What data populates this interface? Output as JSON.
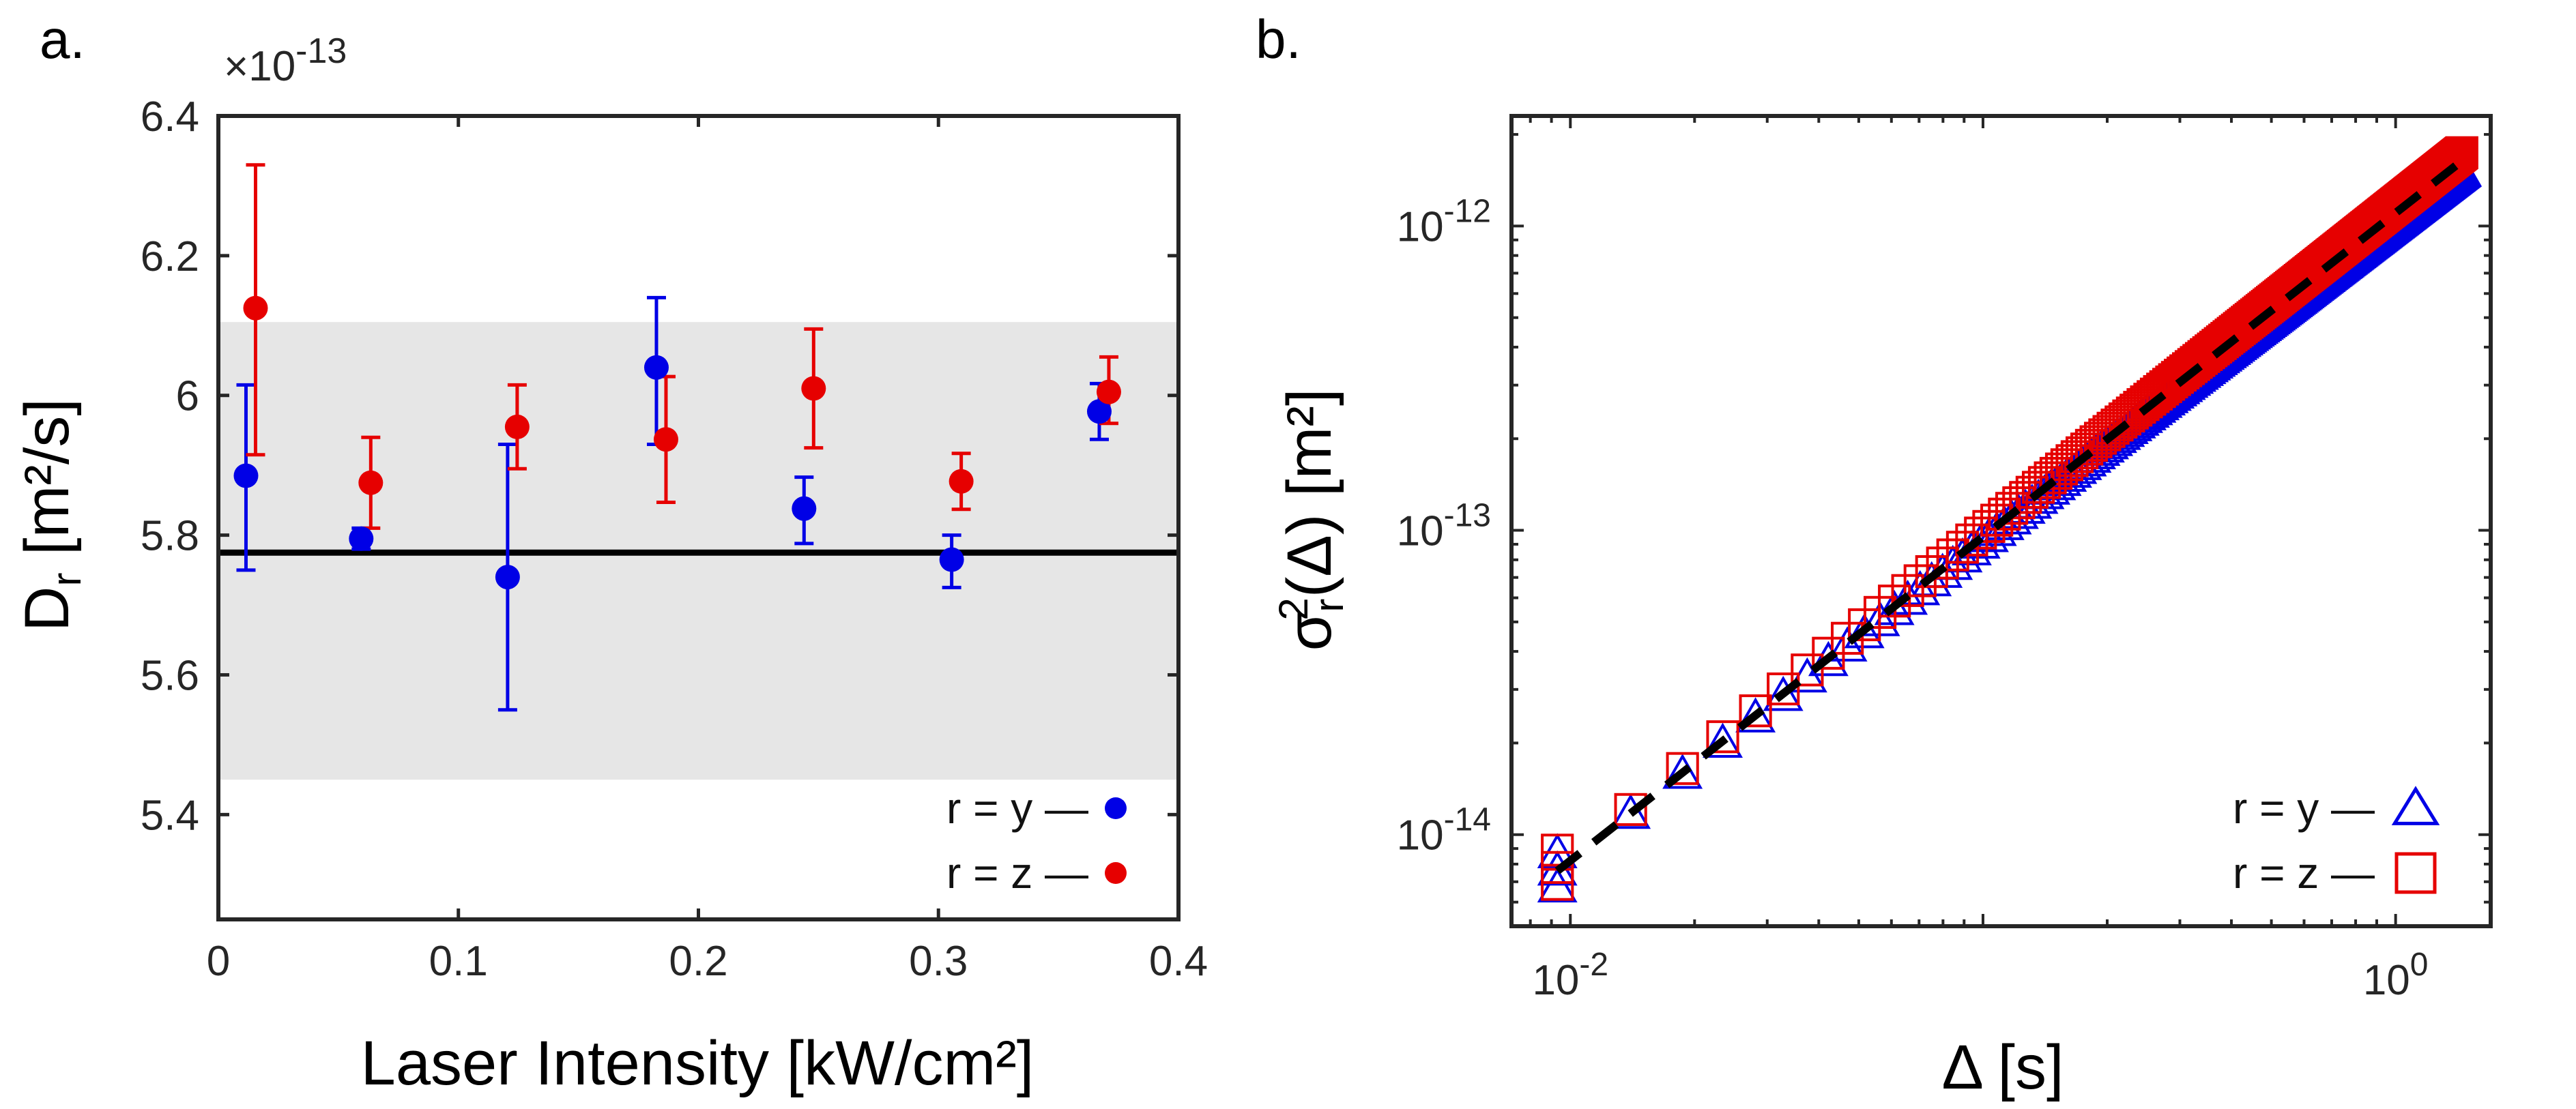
{
  "chart_data": [
    {
      "panel_label": "a.",
      "type": "scatter",
      "xlabel": "Laser Intensity [kW/cm²]",
      "ylabel_main": "D",
      "ylabel_sub": "r",
      "ylabel_rest": " [m²/s]",
      "exponent_label_base": "×10",
      "exponent_label_power": "-13",
      "xlim": [
        0,
        0.4
      ],
      "ylim": [
        5.25,
        6.4
      ],
      "xticks": [
        0,
        0.1,
        0.2,
        0.3,
        0.4
      ],
      "xtick_labels": [
        "0",
        "0.1",
        "0.2",
        "0.3",
        "0.4"
      ],
      "yticks": [
        5.4,
        5.6,
        5.8,
        6.0,
        6.2,
        6.4
      ],
      "ytick_labels": [
        "5.4",
        "5.6",
        "5.8",
        "6",
        "6.2",
        "6.4"
      ],
      "reference_line": 5.775,
      "shaded_band": [
        5.45,
        6.105
      ],
      "series": [
        {
          "name": "r = y",
          "color": "#0000e6",
          "x": [
            0.0135,
            0.0615,
            0.1225,
            0.1845,
            0.246,
            0.3075,
            0.369
          ],
          "y": [
            5.885,
            5.795,
            5.74,
            6.04,
            5.838,
            5.765,
            5.977
          ],
          "yerr_low": [
            0.135,
            0.015,
            0.19,
            0.11,
            0.05,
            0.04,
            0.04
          ],
          "yerr_high": [
            0.13,
            0.015,
            0.19,
            0.1,
            0.045,
            0.035,
            0.04
          ]
        },
        {
          "name": "r = z",
          "color": "#e60000",
          "x": [
            0.0135,
            0.0615,
            0.1225,
            0.1845,
            0.246,
            0.3075,
            0.369
          ],
          "y": [
            6.125,
            5.875,
            5.955,
            5.937,
            6.01,
            5.877,
            6.005
          ],
          "yerr_low": [
            0.21,
            0.065,
            0.06,
            0.09,
            0.085,
            0.04,
            0.045
          ],
          "yerr_high": [
            0.205,
            0.065,
            0.06,
            0.09,
            0.085,
            0.04,
            0.05
          ]
        }
      ],
      "legend": [
        {
          "label": "r = y —",
          "marker": "filled-circle",
          "color": "#0000e6"
        },
        {
          "label": "r = z —",
          "marker": "filled-circle",
          "color": "#e60000"
        }
      ]
    },
    {
      "panel_label": "b.",
      "type": "scatter",
      "xscale": "log",
      "yscale": "log",
      "xlabel": "Δ [s]",
      "ylabel_main": "σ",
      "ylabel_sub": "r",
      "ylabel_sup": "2",
      "ylabel_rest": "(Δ) [m²]",
      "xlim": [
        0.0072,
        1.7
      ],
      "ylim": [
        5e-15,
        2.3e-12
      ],
      "xticks": [
        0.01,
        1
      ],
      "xtick_base": "10",
      "xtick_powers": [
        "-2",
        "0"
      ],
      "yticks": [
        1e-14,
        1e-13,
        1e-12
      ],
      "ytick_base": "10",
      "ytick_powers": [
        "-14",
        "-13",
        "-12"
      ],
      "fit_line": {
        "style": "dashed",
        "color": "#000000",
        "x": [
          0.0093,
          1.5
        ],
        "y": [
          7.6e-15,
          1.7e-12
        ]
      },
      "series": [
        {
          "name": "r = y",
          "marker": "open-triangle",
          "color": "#0000e6",
          "x_start": 0.0093,
          "x_step": 0.0047,
          "x_end": 1.45,
          "fit_y_at_x0": 7.6e-15,
          "trend_exponent": 1.06,
          "spread_note": "near-linear growth; points fan slightly at large Δ"
        },
        {
          "name": "r = z",
          "marker": "open-square",
          "color": "#e60000",
          "x_start": 0.0093,
          "x_step": 0.0047,
          "x_end": 1.45,
          "fit_y_at_x0": 7.8e-15,
          "trend_exponent": 1.06,
          "spread_note": "near-linear growth; points fan slightly at large Δ"
        }
      ],
      "legend": [
        {
          "label": "r = y —",
          "marker": "open-triangle",
          "color": "#0000e6"
        },
        {
          "label": "r = z —",
          "marker": "open-square",
          "color": "#e60000"
        }
      ]
    }
  ]
}
